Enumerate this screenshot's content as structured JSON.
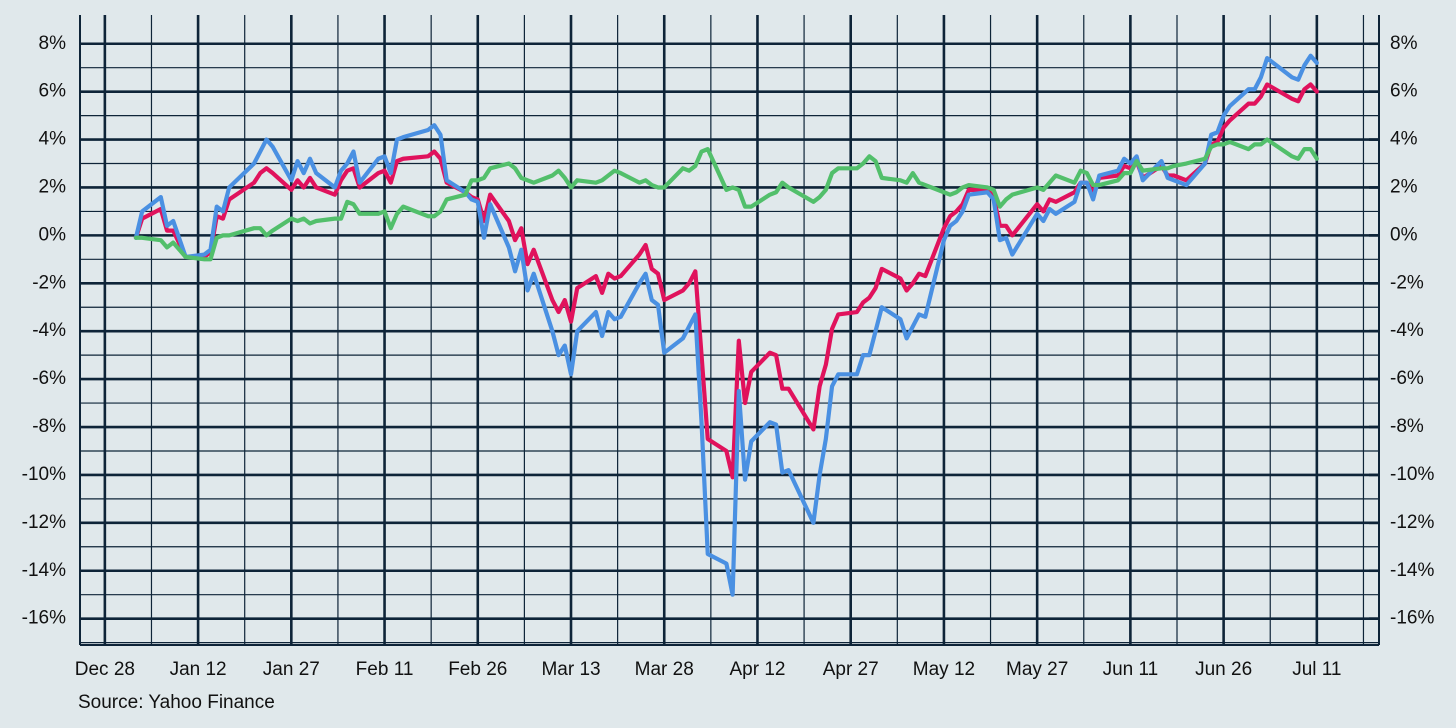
{
  "chart_data": {
    "type": "line",
    "source": "Source: Yahoo Finance",
    "x": [
      "Jan 2",
      "Jan 3",
      "Jan 6",
      "Jan 7",
      "Jan 8",
      "Jan 10",
      "Jan 13",
      "Jan 14",
      "Jan 15",
      "Jan 16",
      "Jan 17",
      "Jan 21",
      "Jan 22",
      "Jan 23",
      "Jan 24",
      "Jan 27",
      "Jan 28",
      "Jan 29",
      "Jan 30",
      "Jan 31",
      "Feb 3",
      "Feb 4",
      "Feb 5",
      "Feb 6",
      "Feb 7",
      "Feb 10",
      "Feb 11",
      "Feb 12",
      "Feb 13",
      "Feb 14",
      "Feb 18",
      "Feb 19",
      "Feb 20",
      "Feb 21",
      "Feb 24",
      "Feb 25",
      "Feb 26",
      "Feb 27",
      "Feb 28",
      "Mar 3",
      "Mar 4",
      "Mar 5",
      "Mar 6",
      "Mar 7",
      "Mar 10",
      "Mar 11",
      "Mar 12",
      "Mar 13",
      "Mar 14",
      "Mar 17",
      "Mar 18",
      "Mar 19",
      "Mar 20",
      "Mar 21",
      "Mar 24",
      "Mar 25",
      "Mar 26",
      "Mar 27",
      "Mar 28",
      "Mar 31",
      "Apr 1",
      "Apr 2",
      "Apr 3",
      "Apr 4",
      "Apr 7",
      "Apr 8",
      "Apr 9",
      "Apr 10",
      "Apr 11",
      "Apr 14",
      "Apr 15",
      "Apr 16",
      "Apr 17",
      "Apr 21",
      "Apr 22",
      "Apr 23",
      "Apr 24",
      "Apr 25",
      "Apr 28",
      "Apr 29",
      "Apr 30",
      "May 1",
      "May 2",
      "May 5",
      "May 6",
      "May 7",
      "May 8",
      "May 9",
      "May 12",
      "May 13",
      "May 14",
      "May 15",
      "May 16",
      "May 19",
      "May 20",
      "May 21",
      "May 22",
      "May 23",
      "May 27",
      "May 28",
      "May 29",
      "May 30",
      "Jun 2",
      "Jun 3",
      "Jun 4",
      "Jun 5",
      "Jun 6",
      "Jun 9",
      "Jun 10",
      "Jun 11",
      "Jun 12",
      "Jun 13",
      "Jun 16",
      "Jun 17",
      "Jun 18",
      "Jun 20",
      "Jun 23",
      "Jun 24",
      "Jun 25",
      "Jun 26",
      "Jun 27",
      "Jun 30",
      "Jul 1",
      "Jul 2",
      "Jul 3",
      "Jul 7",
      "Jul 8",
      "Jul 9",
      "Jul 10",
      "Jul 11"
    ],
    "series": [
      {
        "color": "#e0125c",
        "values": [
          -0.1,
          0.7,
          1.1,
          0.2,
          0.2,
          -0.9,
          -0.9,
          -0.7,
          0.8,
          0.7,
          1.5,
          2.2,
          2.6,
          2.8,
          2.6,
          1.9,
          2.3,
          2.0,
          2.4,
          2.0,
          1.7,
          2.3,
          2.7,
          2.8,
          2.0,
          2.6,
          2.7,
          2.2,
          3.1,
          3.2,
          3.3,
          3.5,
          3.2,
          2.2,
          1.8,
          1.6,
          1.5,
          0.6,
          1.7,
          0.6,
          -0.2,
          0.3,
          -1.2,
          -0.6,
          -2.7,
          -3.2,
          -2.7,
          -3.6,
          -2.2,
          -1.7,
          -2.4,
          -1.6,
          -1.8,
          -1.7,
          -0.8,
          -0.4,
          -1.4,
          -1.6,
          -2.7,
          -2.3,
          -2.0,
          -1.5,
          -5.0,
          -8.5,
          -9.0,
          -10.1,
          -4.4,
          -7.0,
          -5.7,
          -4.9,
          -5.0,
          -6.4,
          -6.4,
          -8.1,
          -6.3,
          -5.4,
          -3.9,
          -3.3,
          -3.2,
          -2.8,
          -2.6,
          -2.2,
          -1.4,
          -1.8,
          -2.3,
          -2.0,
          -1.6,
          -1.7,
          0.3,
          0.8,
          1.0,
          1.3,
          1.9,
          1.9,
          1.6,
          0.4,
          0.4,
          0.0,
          1.3,
          1.0,
          1.5,
          1.4,
          1.8,
          2.2,
          2.2,
          1.8,
          2.4,
          2.5,
          2.9,
          2.8,
          3.1,
          2.4,
          2.9,
          2.5,
          2.5,
          2.3,
          3.0,
          3.8,
          3.9,
          4.5,
          4.8,
          5.5,
          5.5,
          5.8,
          6.3,
          5.7,
          5.6,
          6.1,
          6.3,
          6.0
        ]
      },
      {
        "color": "#4a90e2",
        "values": [
          -0.1,
          1.0,
          1.6,
          0.4,
          0.6,
          -0.9,
          -0.8,
          -0.6,
          1.2,
          1.0,
          2.0,
          3.0,
          3.5,
          4.0,
          3.7,
          2.3,
          3.1,
          2.6,
          3.2,
          2.6,
          2.0,
          2.7,
          3.0,
          3.5,
          2.2,
          3.2,
          3.3,
          2.6,
          4.0,
          4.1,
          4.4,
          4.6,
          4.2,
          2.3,
          1.8,
          1.5,
          1.4,
          -0.1,
          1.3,
          -0.5,
          -1.5,
          -0.6,
          -2.3,
          -1.6,
          -4.0,
          -5.0,
          -4.6,
          -5.8,
          -4.0,
          -3.2,
          -4.2,
          -3.2,
          -3.5,
          -3.4,
          -2.0,
          -1.6,
          -2.7,
          -2.9,
          -4.9,
          -4.3,
          -3.8,
          -3.3,
          -7.8,
          -13.3,
          -13.7,
          -15.0,
          -6.5,
          -10.2,
          -8.6,
          -7.8,
          -7.9,
          -9.9,
          -9.8,
          -12.0,
          -10.0,
          -8.5,
          -6.3,
          -5.8,
          -5.8,
          -5.0,
          -5.0,
          -4.0,
          -3.0,
          -3.5,
          -4.3,
          -3.8,
          -3.3,
          -3.4,
          -0.2,
          0.4,
          0.6,
          1.0,
          1.7,
          1.8,
          1.5,
          -0.2,
          -0.1,
          -0.8,
          0.9,
          0.6,
          1.1,
          0.9,
          1.4,
          2.2,
          2.2,
          1.5,
          2.5,
          2.7,
          3.2,
          3.0,
          3.3,
          2.3,
          3.1,
          2.4,
          2.3,
          2.1,
          3.0,
          4.2,
          4.3,
          5.0,
          5.4,
          6.1,
          6.1,
          6.6,
          7.4,
          6.6,
          6.5,
          7.1,
          7.5,
          7.2
        ]
      },
      {
        "color": "#52bf6b",
        "values": [
          -0.1,
          -0.1,
          -0.2,
          -0.5,
          -0.3,
          -0.9,
          -1.0,
          -1.0,
          -0.1,
          0.0,
          0.0,
          0.3,
          0.3,
          0.0,
          0.2,
          0.7,
          0.6,
          0.7,
          0.5,
          0.6,
          0.7,
          0.7,
          1.4,
          1.3,
          0.9,
          0.9,
          1.0,
          0.3,
          0.9,
          1.2,
          0.8,
          0.8,
          1.0,
          1.5,
          1.7,
          2.3,
          2.3,
          2.4,
          2.8,
          3.0,
          2.8,
          2.4,
          2.3,
          2.2,
          2.5,
          2.7,
          2.4,
          2.0,
          2.3,
          2.2,
          2.3,
          2.5,
          2.7,
          2.6,
          2.2,
          2.3,
          2.1,
          2.0,
          2.0,
          2.8,
          2.7,
          2.9,
          3.5,
          3.6,
          1.9,
          2.0,
          1.9,
          1.2,
          1.2,
          1.7,
          1.8,
          2.2,
          2.0,
          1.4,
          1.6,
          1.9,
          2.6,
          2.8,
          2.8,
          3.0,
          3.3,
          3.1,
          2.4,
          2.3,
          2.2,
          2.6,
          2.2,
          2.1,
          1.8,
          1.7,
          1.8,
          2.0,
          2.1,
          2.0,
          1.9,
          1.2,
          1.5,
          1.7,
          2.0,
          1.9,
          2.2,
          2.5,
          2.2,
          2.7,
          2.6,
          2.1,
          2.1,
          2.3,
          2.6,
          2.6,
          3.1,
          2.7,
          2.8,
          2.8,
          2.9,
          3.0,
          3.2,
          3.7,
          3.8,
          3.8,
          3.9,
          3.6,
          3.8,
          3.8,
          4.0,
          3.3,
          3.2,
          3.6,
          3.6,
          3.2
        ]
      }
    ],
    "xlim": [
      "Dec 24",
      "Jul 21"
    ],
    "xticks": [
      "Dec 28",
      "Jan 12",
      "Jan 27",
      "Feb 11",
      "Feb 26",
      "Mar 13",
      "Mar 28",
      "Apr 12",
      "Apr 27",
      "May 12",
      "May 27",
      "Jun 11",
      "Jun 26",
      "Jul 11"
    ],
    "ylim": [
      -17.1,
      9.2
    ],
    "yticks": [
      {
        "value": 8,
        "label": "8%"
      },
      {
        "value": 6,
        "label": "6%"
      },
      {
        "value": 4,
        "label": "4%"
      },
      {
        "value": 2,
        "label": "2%"
      },
      {
        "value": 0,
        "label": "0%"
      },
      {
        "value": -2,
        "label": "-2%"
      },
      {
        "value": -4,
        "label": "-4%"
      },
      {
        "value": -6,
        "label": "-6%"
      },
      {
        "value": -8,
        "label": "-8%"
      },
      {
        "value": -10,
        "label": "-10%"
      },
      {
        "value": -12,
        "label": "-12%"
      },
      {
        "value": -14,
        "label": "-14%"
      },
      {
        "value": -16,
        "label": "-16%"
      }
    ],
    "y2lim": [
      -17.1,
      9.2
    ],
    "y2ticks": [
      {
        "value": 8,
        "label": "8%"
      },
      {
        "value": 6,
        "label": "6%"
      },
      {
        "value": 4,
        "label": "4%"
      },
      {
        "value": 2,
        "label": "2%"
      },
      {
        "value": 0,
        "label": "0%"
      },
      {
        "value": -2,
        "label": "-2%"
      },
      {
        "value": -4,
        "label": "-4%"
      },
      {
        "value": -6,
        "label": "-6%"
      },
      {
        "value": -8,
        "label": "-8%"
      },
      {
        "value": -10,
        "label": "-10%"
      },
      {
        "value": -12,
        "label": "-12%"
      },
      {
        "value": -14,
        "label": "-14%"
      },
      {
        "value": -16,
        "label": "-16%"
      }
    ],
    "grid": true,
    "minor_grid": true
  }
}
